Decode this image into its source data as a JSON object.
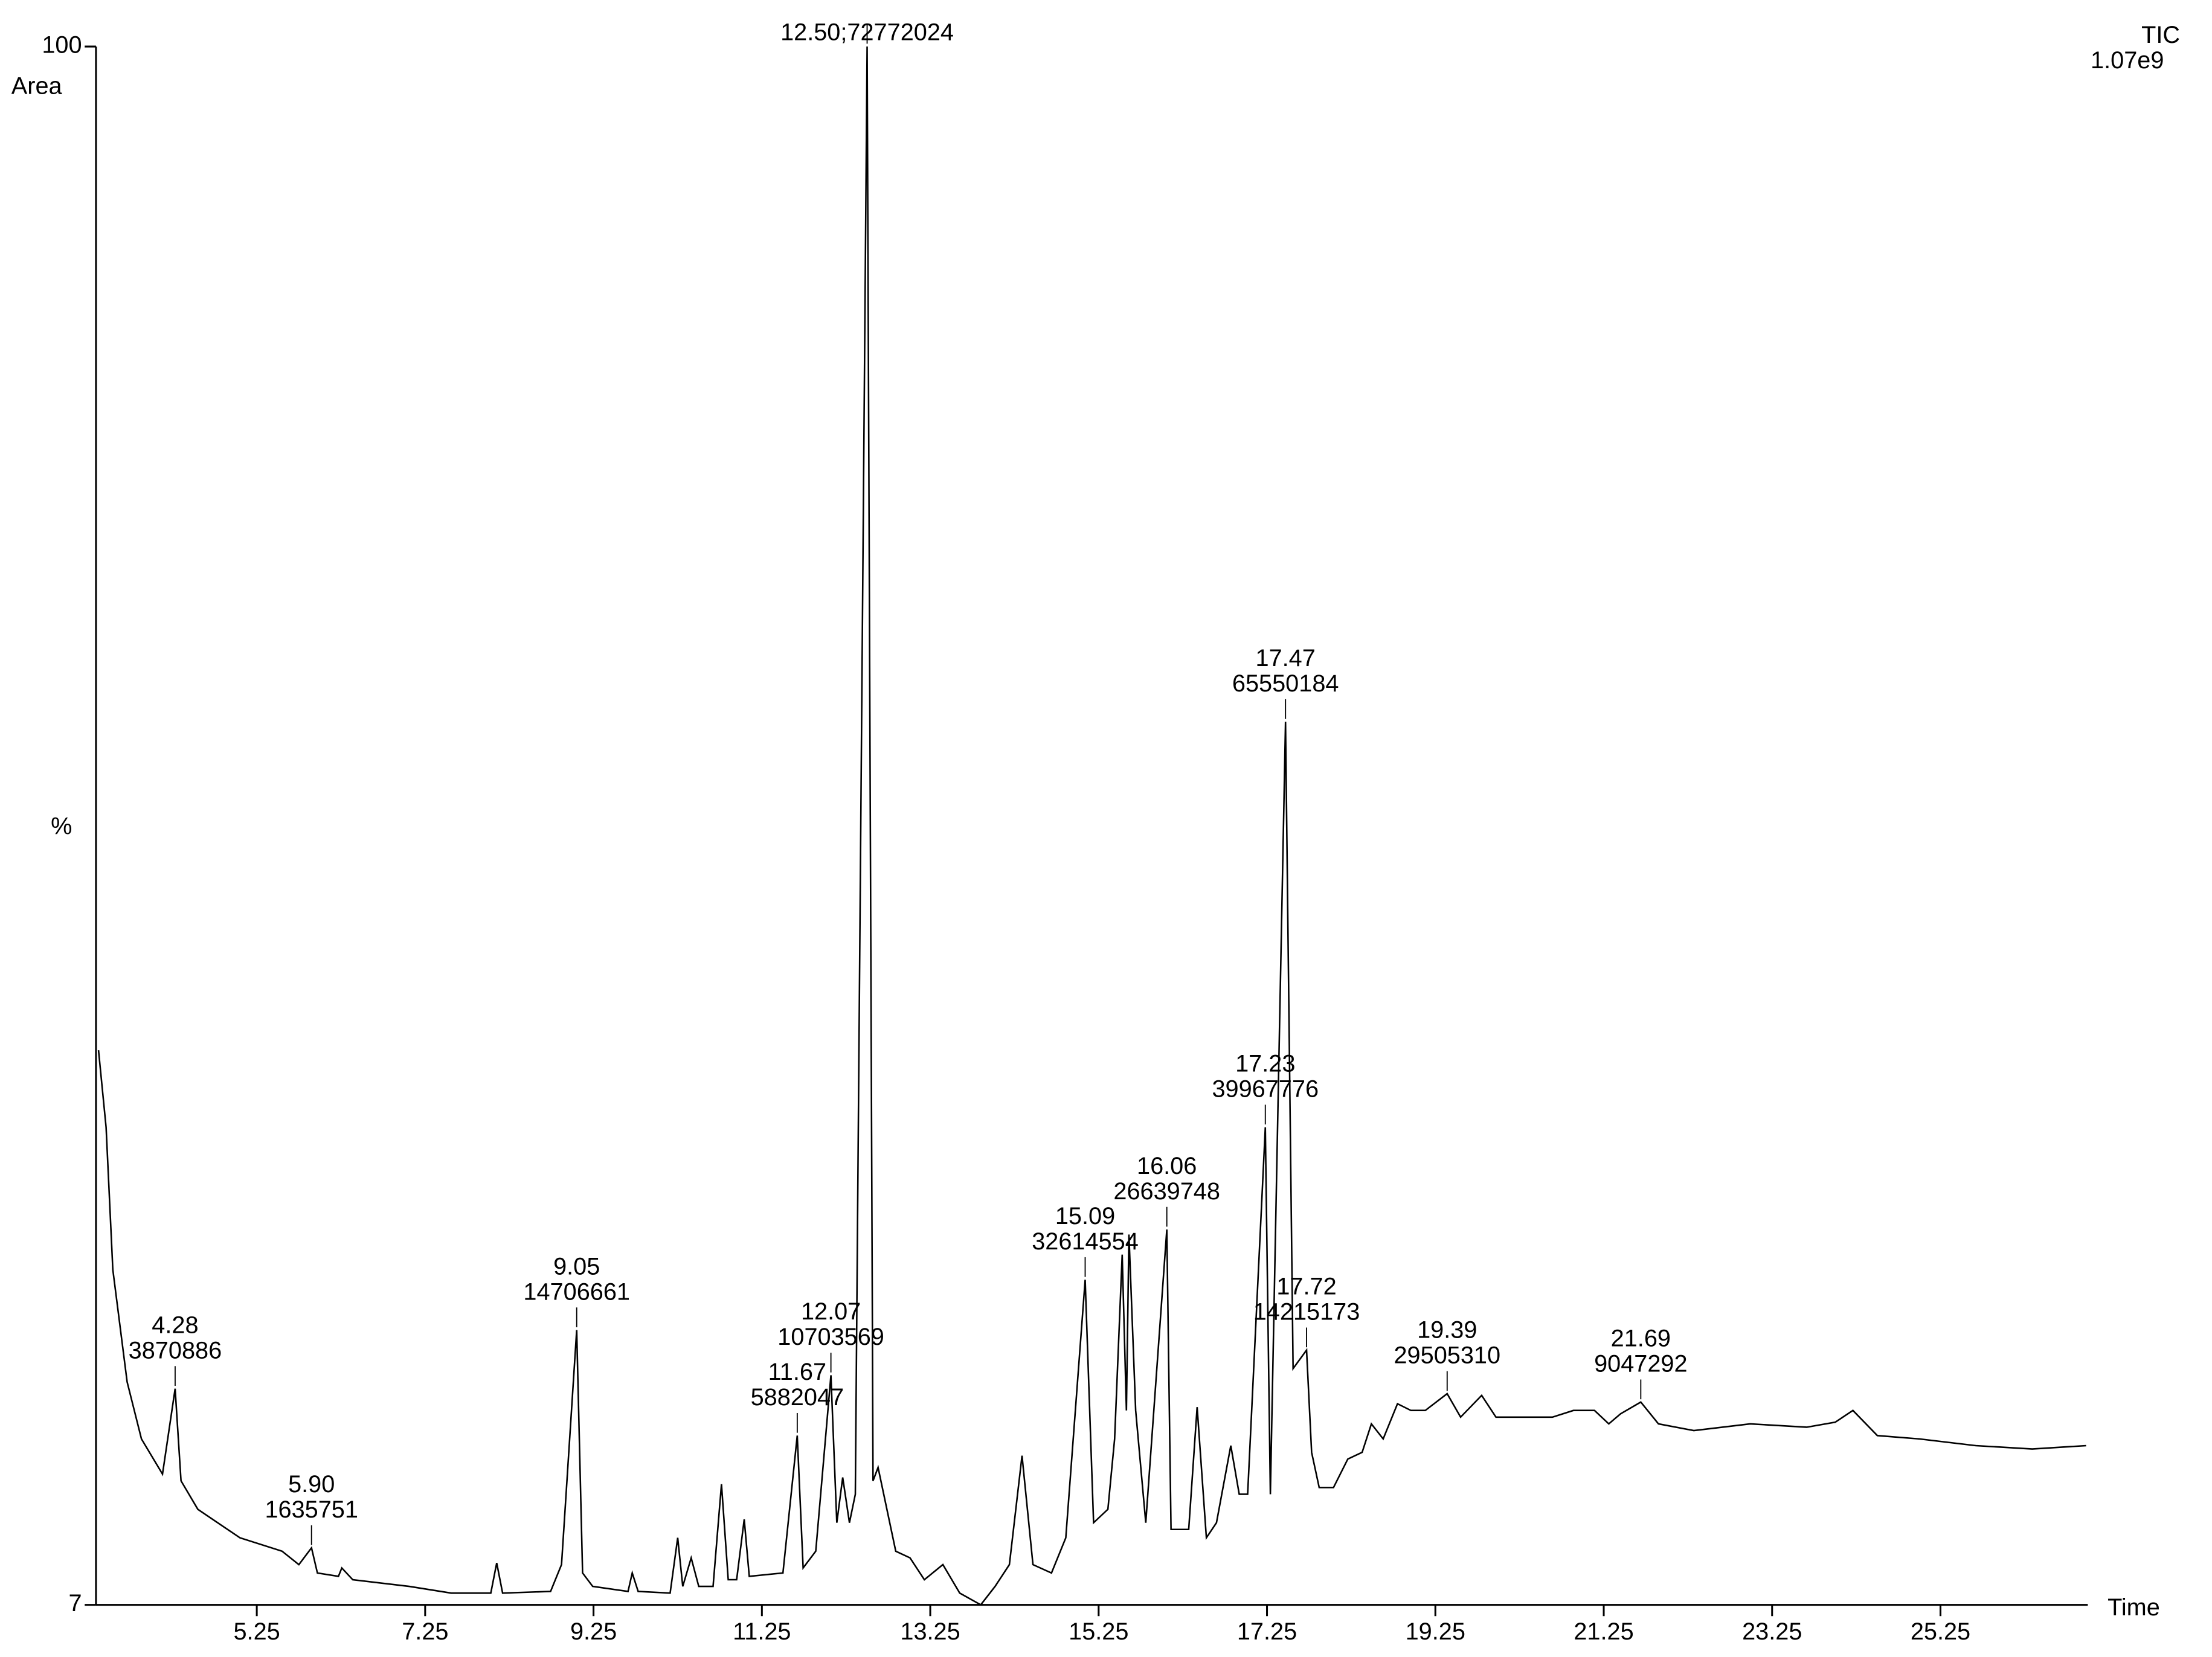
{
  "chart_data": {
    "type": "line",
    "y_label_top": "Area",
    "y_label": "%",
    "x_label": "Time",
    "trace_label": "TIC",
    "scale_label": "1.07e9",
    "xlim": [
      3.34,
      27.0
    ],
    "ylim": [
      7,
      100
    ],
    "xticks": [
      5.25,
      7.25,
      9.25,
      11.25,
      13.25,
      15.25,
      17.25,
      19.25,
      21.25,
      23.25,
      25.25
    ],
    "yticks": [
      7,
      100
    ],
    "series": [
      {
        "name": "TIC",
        "color": "#000000",
        "x": [
          3.37,
          3.46,
          3.54,
          3.71,
          3.88,
          4.13,
          4.28,
          4.35,
          4.55,
          5.05,
          5.55,
          5.75,
          5.9,
          5.97,
          6.22,
          6.26,
          6.39,
          7.06,
          7.56,
          8.03,
          8.1,
          8.17,
          8.74,
          8.87,
          9.05,
          9.12,
          9.24,
          9.66,
          9.71,
          9.78,
          10.16,
          10.25,
          10.31,
          10.41,
          10.5,
          10.67,
          10.77,
          10.85,
          10.95,
          11.04,
          11.1,
          11.5,
          11.67,
          11.74,
          11.89,
          12.07,
          12.14,
          12.21,
          12.29,
          12.36,
          12.5,
          12.57,
          12.63,
          12.84,
          13.01,
          13.18,
          13.4,
          13.6,
          13.85,
          14.02,
          14.19,
          14.34,
          14.47,
          14.69,
          14.86,
          15.09,
          15.19,
          15.36,
          15.44,
          15.53,
          15.58,
          15.61,
          15.69,
          15.81,
          16.06,
          16.11,
          16.32,
          16.42,
          16.53,
          16.65,
          16.82,
          16.92,
          17.02,
          17.23,
          17.29,
          17.47,
          17.56,
          17.72,
          17.78,
          17.87,
          18.04,
          18.21,
          18.38,
          18.49,
          18.63,
          18.8,
          18.96,
          19.13,
          19.39,
          19.55,
          19.8,
          19.97,
          20.3,
          20.64,
          20.89,
          21.14,
          21.31,
          21.45,
          21.69,
          21.9,
          22.32,
          22.99,
          23.66,
          24.0,
          24.21,
          24.5,
          25.0,
          25.67,
          26.34,
          26.98
        ],
        "values": [
          40.1,
          35.5,
          27.0,
          20.3,
          16.9,
          14.8,
          19.9,
          14.4,
          12.7,
          11.0,
          10.2,
          9.4,
          10.4,
          8.9,
          8.7,
          9.2,
          8.5,
          8.1,
          7.7,
          7.7,
          9.5,
          7.7,
          7.8,
          9.4,
          23.4,
          8.9,
          8.1,
          7.8,
          8.9,
          7.8,
          7.7,
          11.0,
          8.1,
          9.8,
          8.1,
          8.1,
          14.2,
          8.5,
          8.5,
          12.1,
          8.7,
          8.9,
          17.1,
          9.2,
          10.2,
          20.7,
          11.9,
          14.6,
          11.9,
          13.6,
          100,
          14.4,
          15.2,
          10.2,
          9.8,
          8.5,
          9.4,
          7.7,
          7.0,
          8.1,
          9.4,
          15.9,
          9.4,
          8.9,
          11.0,
          26.4,
          11.9,
          12.7,
          16.9,
          27.9,
          18.6,
          29.1,
          18.6,
          11.9,
          29.4,
          11.5,
          11.5,
          18.8,
          11.0,
          11.9,
          16.5,
          13.6,
          13.6,
          35.5,
          13.6,
          59.7,
          21.1,
          22.2,
          16.1,
          14.0,
          14.0,
          15.7,
          16.1,
          17.8,
          16.9,
          19.0,
          18.6,
          18.6,
          19.6,
          18.2,
          19.5,
          18.2,
          18.2,
          18.2,
          18.6,
          18.6,
          17.8,
          18.4,
          19.1,
          17.8,
          17.4,
          17.8,
          17.6,
          17.9,
          18.6,
          17.1,
          16.9,
          16.5,
          16.3,
          16.5
        ]
      }
    ],
    "annotations": [
      {
        "x": 4.28,
        "label": "4.28",
        "area": 3870886
      },
      {
        "x": 5.9,
        "label": "5.90",
        "area": 1635751
      },
      {
        "x": 9.05,
        "label": "9.05",
        "area": 14706661
      },
      {
        "x": 11.67,
        "label": "11.67",
        "area": 5882047
      },
      {
        "x": 12.07,
        "label": "12.07",
        "area": 10703569
      },
      {
        "x": 12.5,
        "label": "12.50;72772024"
      },
      {
        "x": 15.09,
        "label": "15.09",
        "area": 32614554
      },
      {
        "x": 16.06,
        "label": "16.06",
        "area": 26639748
      },
      {
        "x": 17.23,
        "label": "17.23",
        "area": 39967776
      },
      {
        "x": 17.47,
        "label": "17.47",
        "area": 65550184
      },
      {
        "x": 17.72,
        "label": "17.72",
        "area": 14215173
      },
      {
        "x": 19.39,
        "label": "19.39",
        "area": 29505310
      },
      {
        "x": 21.69,
        "label": "21.69",
        "area": 9047292
      }
    ]
  }
}
